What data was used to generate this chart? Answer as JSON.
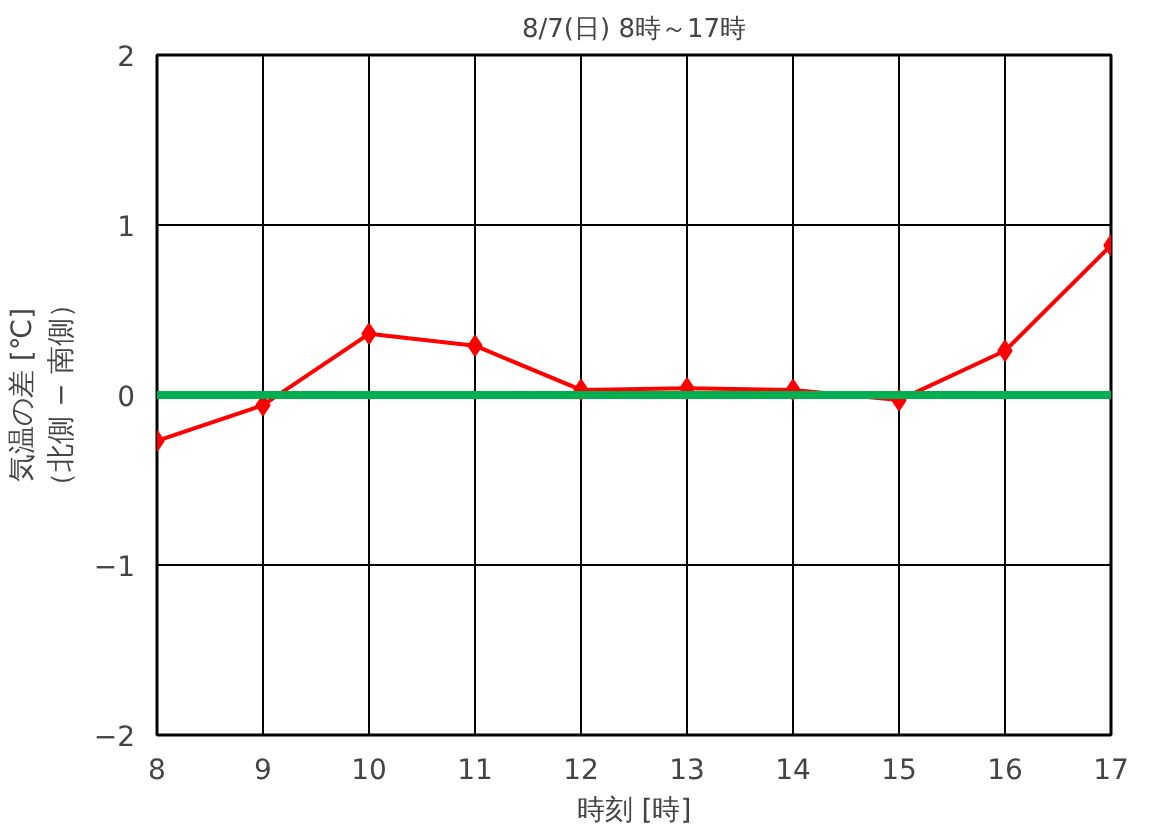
{
  "chart_data": {
    "type": "line",
    "title": "8/7(日) 8時～17時",
    "xlabel": "時刻 [時]",
    "ylabel": "気温の差 [℃]\n（北側 − 南側）",
    "x": [
      8,
      9,
      10,
      11,
      12,
      13,
      14,
      15,
      16,
      17
    ],
    "series": [
      {
        "color": "#ff0000",
        "values": [
          -0.27,
          -0.06,
          0.36,
          0.29,
          0.03,
          0.04,
          0.03,
          -0.03,
          0.26,
          0.88
        ]
      }
    ],
    "xlim": [
      8,
      17
    ],
    "xticks": [
      8,
      9,
      10,
      11,
      12,
      13,
      14,
      15,
      16,
      17
    ],
    "ylim": [
      -2,
      2
    ],
    "yticks": [
      {
        "value": -2,
        "label": "−2"
      },
      {
        "value": -1,
        "label": "−1"
      },
      0,
      1,
      2
    ],
    "ref_lines": [
      {
        "axis": "y",
        "value": 0,
        "color": "#00b050"
      }
    ],
    "grid": true,
    "marker": "diamond",
    "line_style": "solid"
  }
}
